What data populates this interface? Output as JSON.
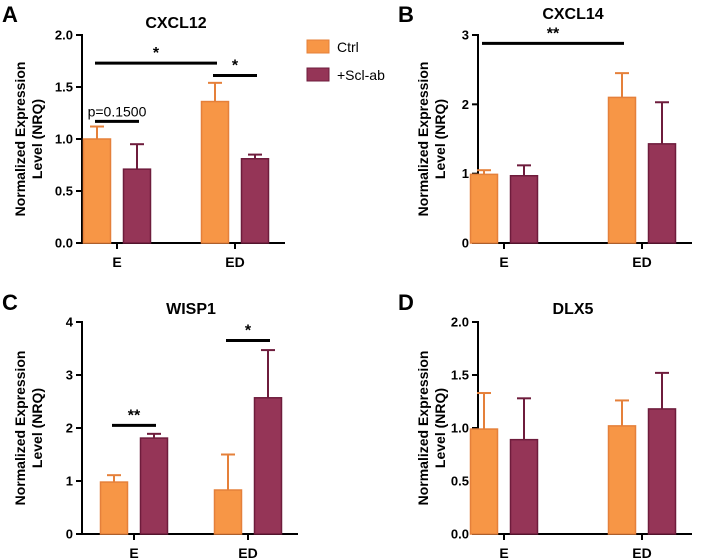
{
  "legend": {
    "entries": [
      {
        "name": "Ctrl",
        "color": "#f79646"
      },
      {
        "name": "+Scl-ab",
        "color": "#953557"
      }
    ]
  },
  "chart_data": [
    {
      "panel": "A",
      "type": "bar",
      "title": "CXCL12",
      "ylabel_line1": "Normalized Expression",
      "ylabel_line2": "Level (NRQ)",
      "categories": [
        "E",
        "ED"
      ],
      "ylim": [
        0,
        2.0
      ],
      "yticks": [
        0,
        0.5,
        1.0,
        1.5,
        2.0
      ],
      "yticklabels": [
        "0.0",
        "0.5",
        "1.0",
        "1.5",
        "2.0"
      ],
      "series": [
        {
          "name": "Ctrl",
          "values": [
            1.0,
            1.36
          ],
          "errors": [
            0.12,
            0.18
          ]
        },
        {
          "name": "+Scl-ab",
          "values": [
            0.71,
            0.81
          ],
          "errors": [
            0.24,
            0.04
          ]
        }
      ],
      "annotations": [
        {
          "label": "*",
          "type": "sig",
          "from": [
            0,
            0
          ],
          "to": [
            1,
            0
          ],
          "y": 1.73
        },
        {
          "label": "*",
          "type": "sig",
          "from": [
            1,
            0
          ],
          "to": [
            1,
            1
          ],
          "y": 1.61
        },
        {
          "label": "p=0.1500",
          "type": "pval",
          "from": [
            0,
            0
          ],
          "to": [
            0,
            1
          ],
          "y": 1.17
        }
      ]
    },
    {
      "panel": "B",
      "type": "bar",
      "title": "CXCL14",
      "ylabel_line1": "Normalized Expression",
      "ylabel_line2": "Level (NRQ)",
      "categories": [
        "E",
        "ED"
      ],
      "ylim": [
        0,
        3
      ],
      "yticks": [
        0,
        1,
        2,
        3
      ],
      "yticklabels": [
        "0",
        "1",
        "2",
        "3"
      ],
      "series": [
        {
          "name": "Ctrl",
          "values": [
            0.99,
            2.1
          ],
          "errors": [
            0.06,
            0.35
          ]
        },
        {
          "name": "+Scl-ab",
          "values": [
            0.97,
            1.43
          ],
          "errors": [
            0.15,
            0.6
          ]
        }
      ],
      "annotations": [
        {
          "label": "**",
          "type": "sig",
          "from": [
            0,
            0
          ],
          "to": [
            1,
            0
          ],
          "y": 2.88
        }
      ]
    },
    {
      "panel": "C",
      "type": "bar",
      "title": "WISP1",
      "ylabel_line1": "Normalized Expression",
      "ylabel_line2": "Level (NRQ)",
      "categories": [
        "E",
        "ED"
      ],
      "ylim": [
        0,
        4
      ],
      "yticks": [
        0,
        1,
        2,
        3,
        4
      ],
      "yticklabels": [
        "0",
        "1",
        "2",
        "3",
        "4"
      ],
      "series": [
        {
          "name": "Ctrl",
          "values": [
            0.98,
            0.83
          ],
          "errors": [
            0.13,
            0.67
          ]
        },
        {
          "name": "+Scl-ab",
          "values": [
            1.81,
            2.57
          ],
          "errors": [
            0.08,
            0.9
          ]
        }
      ],
      "annotations": [
        {
          "label": "**",
          "type": "sig",
          "from": [
            0,
            0
          ],
          "to": [
            0,
            1
          ],
          "y": 2.05
        },
        {
          "label": "*",
          "type": "sig",
          "from": [
            1,
            0
          ],
          "to": [
            1,
            1
          ],
          "y": 3.65
        }
      ]
    },
    {
      "panel": "D",
      "type": "bar",
      "title": "DLX5",
      "ylabel_line1": "Normalized Expression",
      "ylabel_line2": "Level (NRQ)",
      "categories": [
        "E",
        "ED"
      ],
      "ylim": [
        0,
        2.0
      ],
      "yticks": [
        0,
        0.5,
        1.0,
        1.5,
        2.0
      ],
      "yticklabels": [
        "0.0",
        "0.5",
        "1.0",
        "1.5",
        "2.0"
      ],
      "series": [
        {
          "name": "Ctrl",
          "values": [
            0.99,
            1.02
          ],
          "errors": [
            0.34,
            0.24
          ]
        },
        {
          "name": "+Scl-ab",
          "values": [
            0.89,
            1.18
          ],
          "errors": [
            0.39,
            0.34
          ]
        }
      ],
      "annotations": []
    }
  ]
}
